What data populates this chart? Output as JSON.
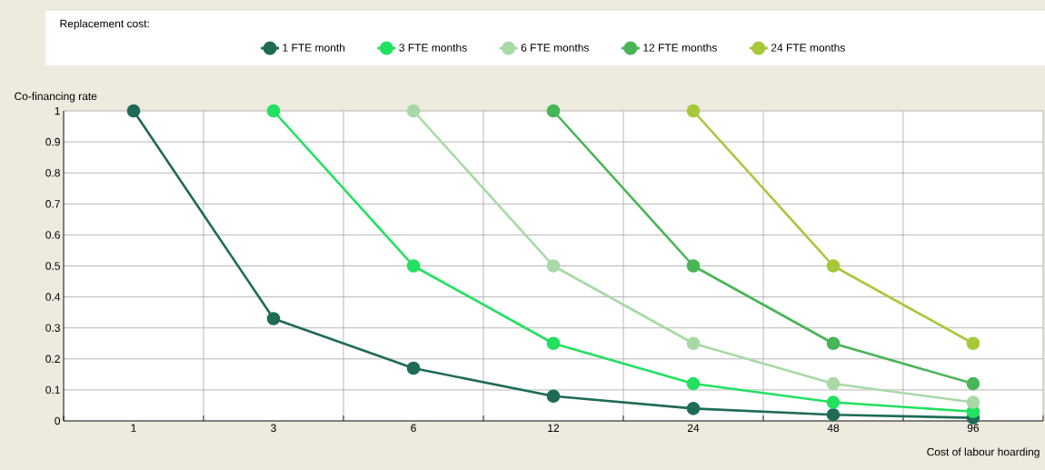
{
  "chart_data": {
    "type": "line",
    "xlabel": "Cost of labour hoarding",
    "ylabel": "Co-financing rate",
    "legend_title": "Replacement cost:",
    "categories": [
      "1",
      "3",
      "6",
      "12",
      "24",
      "48",
      "96"
    ],
    "series": [
      {
        "name": "1 FTE month",
        "color": "#1f6b55",
        "values": [
          1,
          0.33,
          0.17,
          0.08,
          0.04,
          0.02,
          0.01
        ]
      },
      {
        "name": "3 FTE months",
        "color": "#22e060",
        "values": [
          null,
          1,
          0.5,
          0.25,
          0.12,
          0.06,
          0.03
        ]
      },
      {
        "name": "6 FTE months",
        "color": "#a8d9a6",
        "values": [
          null,
          null,
          1,
          0.5,
          0.25,
          0.12,
          0.06
        ]
      },
      {
        "name": "12 FTE months",
        "color": "#48b556",
        "values": [
          null,
          null,
          null,
          1,
          0.5,
          0.25,
          0.12
        ]
      },
      {
        "name": "24 FTE months",
        "color": "#a6c83a",
        "values": [
          null,
          null,
          null,
          null,
          1,
          0.5,
          0.25
        ]
      }
    ],
    "ylim": [
      0,
      1
    ],
    "yticks": [
      0,
      0.1,
      0.2,
      0.3,
      0.4,
      0.5,
      0.6,
      0.7,
      0.8,
      0.9,
      1
    ],
    "grid": true,
    "legend": "top",
    "marker": "circle",
    "line_style": "solid"
  }
}
